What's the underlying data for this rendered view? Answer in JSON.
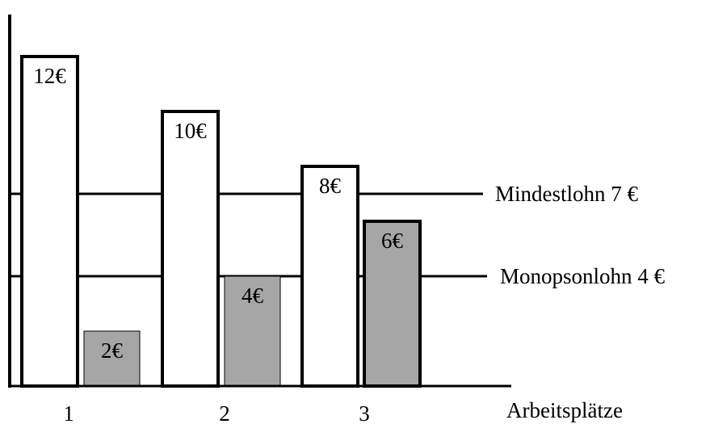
{
  "chart_data": {
    "type": "bar",
    "xlabel": "Arbeitsplätze",
    "ylabel": "",
    "ylim": [
      0,
      12
    ],
    "categories": [
      "1",
      "2",
      "3"
    ],
    "series": [
      {
        "values": [
          12,
          10,
          8
        ],
        "labels": [
          "12€",
          "10€",
          "8€"
        ],
        "fill": "#ffffff"
      },
      {
        "values": [
          2,
          4,
          6
        ],
        "labels": [
          "2€",
          "4€",
          "6€"
        ],
        "fill": "#a6a6a6"
      }
    ],
    "reference_lines": [
      {
        "value": 7,
        "label": "Mindestlohn 7 €"
      },
      {
        "value": 4,
        "label": "Monopsonlohn 4 €"
      }
    ]
  }
}
